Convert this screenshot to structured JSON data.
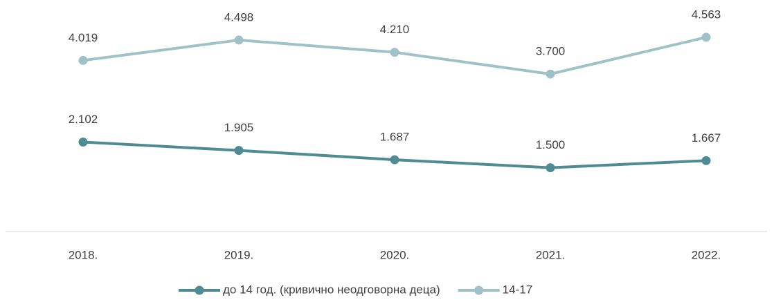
{
  "chart_data": {
    "type": "line",
    "categories": [
      "2018.",
      "2019.",
      "2020.",
      "2021.",
      "2022."
    ],
    "series": [
      {
        "name": "до 14 год. (кривично неодговорна деца)",
        "color": "#4e8b93",
        "values": [
          2102,
          1905,
          1687,
          1500,
          1667
        ],
        "value_labels": [
          "2.102",
          "1.905",
          "1.687",
          "1.500",
          "1.667"
        ]
      },
      {
        "name": "14-17",
        "color": "#9fc2c9",
        "values": [
          4019,
          4498,
          4210,
          3700,
          4563
        ],
        "value_labels": [
          "4.019",
          "4.498",
          "4.210",
          "3.700",
          "4.563"
        ]
      }
    ],
    "ylim": [
      0,
      5000
    ],
    "legend": "bottom"
  }
}
